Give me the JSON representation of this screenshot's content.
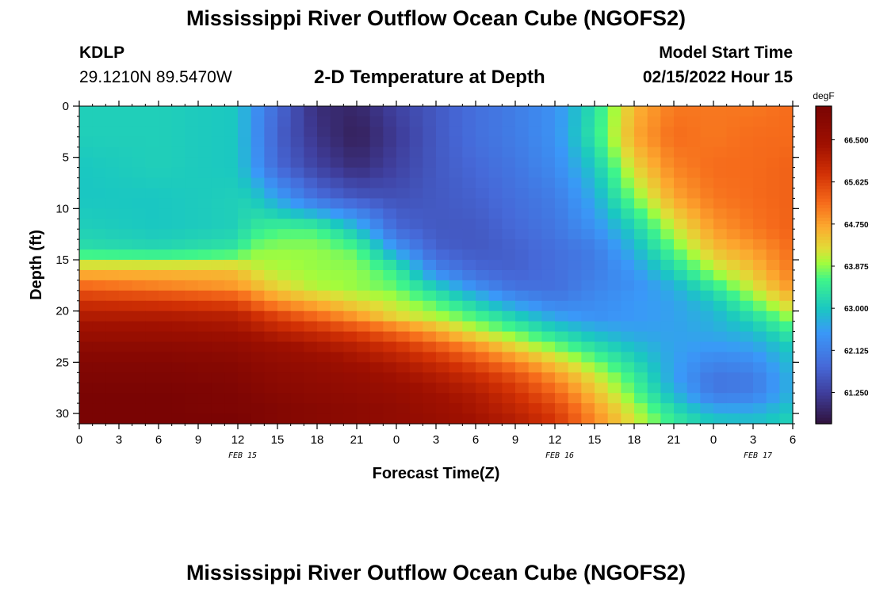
{
  "header": {
    "title": "Mississippi River Outflow Ocean Cube (NGOFS2)",
    "station": "KDLP",
    "coordinates": "29.1210N  89.5470W",
    "subtitle": "2-D Temperature at Depth",
    "model_start_label": "Model Start Time",
    "model_start_value": "02/15/2022 Hour 15"
  },
  "footer_title": "Mississippi River Outflow Ocean Cube (NGOFS2)",
  "chart_data": {
    "type": "heatmap",
    "xlabel": "Forecast Time(Z)",
    "ylabel": "Depth (ft)",
    "x_ticks": [
      "0",
      "3",
      "6",
      "9",
      "12",
      "15",
      "18",
      "21",
      "0",
      "3",
      "6",
      "9",
      "12",
      "15",
      "18",
      "21",
      "0",
      "3",
      "6"
    ],
    "x_range_hours": [
      0,
      54
    ],
    "date_labels": [
      {
        "label": "FEB 15",
        "hour": 12
      },
      {
        "label": "FEB 16",
        "hour": 36
      },
      {
        "label": "FEB 17",
        "hour": 51
      }
    ],
    "y_ticks": [
      0,
      5,
      10,
      15,
      20,
      25,
      30
    ],
    "ylim": [
      31,
      0
    ],
    "colorbar": {
      "unit": "degF",
      "ticks": [
        "61.250",
        "62.125",
        "63.000",
        "63.875",
        "64.750",
        "65.625",
        "66.500"
      ],
      "range": [
        60.6,
        67.2
      ]
    },
    "colormap": [
      "#30123b",
      "#3f3e9c",
      "#4669d8",
      "#3a98f8",
      "#1ac7c2",
      "#3ff58a",
      "#a4fc3c",
      "#e1dc37",
      "#fca92f",
      "#f66b1b",
      "#d23105",
      "#a01101",
      "#7a0403"
    ],
    "color_stops_degF": [
      60.6,
      61.25,
      61.8,
      62.5,
      63.0,
      63.6,
      63.95,
      64.25,
      64.7,
      65.2,
      65.8,
      66.4,
      67.2
    ],
    "grid": {
      "depths_ft": [
        0,
        3,
        6,
        9,
        12,
        14,
        16,
        17.5,
        19,
        20.5,
        22,
        23.5,
        25,
        26.5,
        28,
        29.5,
        31
      ],
      "hours": [
        0,
        6,
        12,
        13,
        15,
        18,
        21,
        24,
        27,
        30,
        33,
        36,
        39,
        42,
        45,
        48,
        51,
        54
      ],
      "temperature_degF": [
        [
          63.1,
          63.1,
          63.0,
          62.5,
          61.8,
          61.0,
          60.9,
          61.3,
          61.6,
          61.9,
          62.1,
          62.4,
          63.3,
          64.6,
          65.1,
          65.1,
          65.1,
          65.2
        ],
        [
          63.1,
          63.1,
          63.0,
          62.5,
          61.7,
          61.1,
          60.8,
          61.2,
          61.6,
          61.9,
          62.1,
          62.4,
          63.4,
          64.7,
          65.2,
          65.1,
          65.2,
          65.2
        ],
        [
          63.0,
          63.1,
          63.0,
          62.6,
          61.8,
          61.3,
          61.0,
          61.3,
          61.6,
          61.8,
          62.0,
          62.3,
          63.0,
          64.3,
          65.0,
          65.2,
          65.2,
          65.3
        ],
        [
          63.0,
          63.0,
          63.1,
          63.1,
          62.6,
          61.9,
          61.6,
          61.5,
          61.6,
          61.7,
          61.9,
          62.1,
          62.7,
          63.8,
          64.7,
          65.1,
          65.2,
          65.3
        ],
        [
          63.1,
          63.0,
          63.1,
          63.4,
          63.6,
          63.6,
          62.9,
          61.8,
          61.6,
          61.6,
          61.8,
          62.0,
          62.4,
          63.1,
          64.1,
          64.8,
          65.1,
          65.3
        ],
        [
          63.3,
          63.2,
          63.4,
          63.8,
          63.9,
          63.9,
          63.7,
          62.5,
          61.7,
          61.6,
          61.7,
          61.9,
          62.1,
          62.8,
          63.7,
          64.5,
          64.8,
          65.2
        ],
        [
          64.5,
          64.5,
          64.5,
          64.2,
          64.0,
          63.9,
          63.9,
          63.5,
          62.2,
          61.8,
          61.7,
          61.9,
          62.1,
          62.5,
          63.2,
          64.0,
          64.5,
          65.1
        ],
        [
          65.2,
          65.0,
          64.8,
          64.6,
          64.3,
          64.0,
          63.9,
          63.7,
          63.0,
          62.3,
          61.9,
          61.9,
          62.2,
          62.4,
          62.8,
          63.5,
          64.2,
          64.9
        ],
        [
          65.8,
          65.7,
          65.5,
          65.2,
          64.8,
          64.5,
          64.2,
          64.0,
          63.6,
          63.0,
          62.4,
          62.1,
          62.3,
          62.5,
          62.6,
          63.0,
          63.8,
          64.5
        ],
        [
          66.2,
          66.2,
          66.1,
          65.9,
          65.6,
          65.2,
          64.8,
          64.3,
          64.0,
          63.6,
          63.1,
          62.6,
          62.4,
          62.5,
          62.6,
          62.8,
          63.3,
          64.0
        ],
        [
          66.5,
          66.5,
          66.4,
          66.3,
          66.1,
          65.9,
          65.6,
          65.2,
          64.7,
          64.1,
          63.7,
          63.2,
          62.8,
          62.6,
          62.6,
          62.7,
          62.9,
          63.5
        ],
        [
          66.8,
          66.8,
          66.7,
          66.6,
          66.5,
          66.3,
          66.1,
          65.8,
          65.4,
          64.9,
          64.3,
          63.8,
          63.3,
          62.9,
          62.6,
          62.5,
          62.6,
          63.1
        ],
        [
          67.0,
          67.0,
          66.9,
          66.8,
          66.7,
          66.6,
          66.4,
          66.2,
          65.9,
          65.5,
          65.0,
          64.4,
          63.8,
          63.2,
          62.6,
          62.2,
          62.3,
          62.9
        ],
        [
          67.1,
          67.1,
          67.0,
          66.9,
          66.8,
          66.7,
          66.6,
          66.4,
          66.2,
          65.9,
          65.5,
          64.9,
          64.2,
          63.5,
          62.6,
          62.0,
          62.1,
          62.8
        ],
        [
          67.2,
          67.2,
          67.1,
          67.0,
          66.9,
          66.8,
          66.7,
          66.6,
          66.4,
          66.2,
          65.8,
          65.3,
          64.5,
          63.7,
          62.8,
          62.0,
          62.1,
          62.8
        ],
        [
          67.2,
          67.2,
          67.1,
          67.1,
          67.0,
          66.9,
          66.8,
          66.7,
          66.5,
          66.3,
          66.0,
          65.6,
          64.8,
          64.0,
          63.2,
          62.6,
          62.6,
          63.0
        ],
        [
          67.2,
          67.2,
          67.2,
          67.1,
          67.0,
          66.9,
          66.8,
          66.7,
          66.6,
          66.4,
          66.2,
          65.8,
          65.0,
          64.2,
          63.5,
          63.1,
          63.0,
          63.2
        ]
      ]
    }
  }
}
